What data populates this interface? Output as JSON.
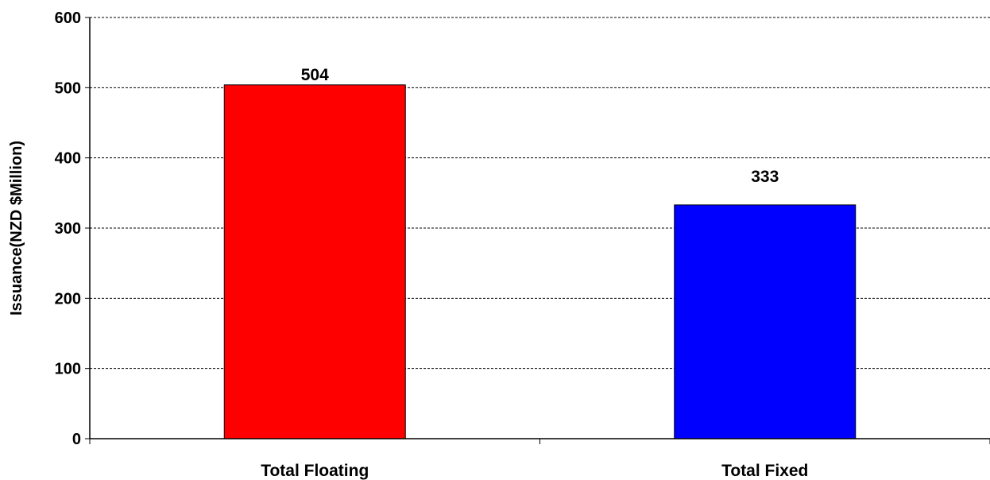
{
  "chart_data": {
    "type": "bar",
    "categories": [
      "Total Floating",
      "Total Fixed"
    ],
    "values": [
      504,
      333
    ],
    "data_labels": [
      "504",
      "333"
    ],
    "colors": [
      "#ff0000",
      "#0000ff"
    ],
    "bar_border_color": "#000000",
    "ylabel": "Issuance(NZD $Million)",
    "xlabel": "",
    "title": "",
    "ylim": [
      0,
      600
    ],
    "yticks": [
      0,
      100,
      200,
      300,
      400,
      500,
      600
    ],
    "ytick_labels": [
      "0",
      "100",
      "200",
      "300",
      "400",
      "500",
      "600"
    ],
    "grid": "horizontal dashed",
    "legend": "none"
  }
}
